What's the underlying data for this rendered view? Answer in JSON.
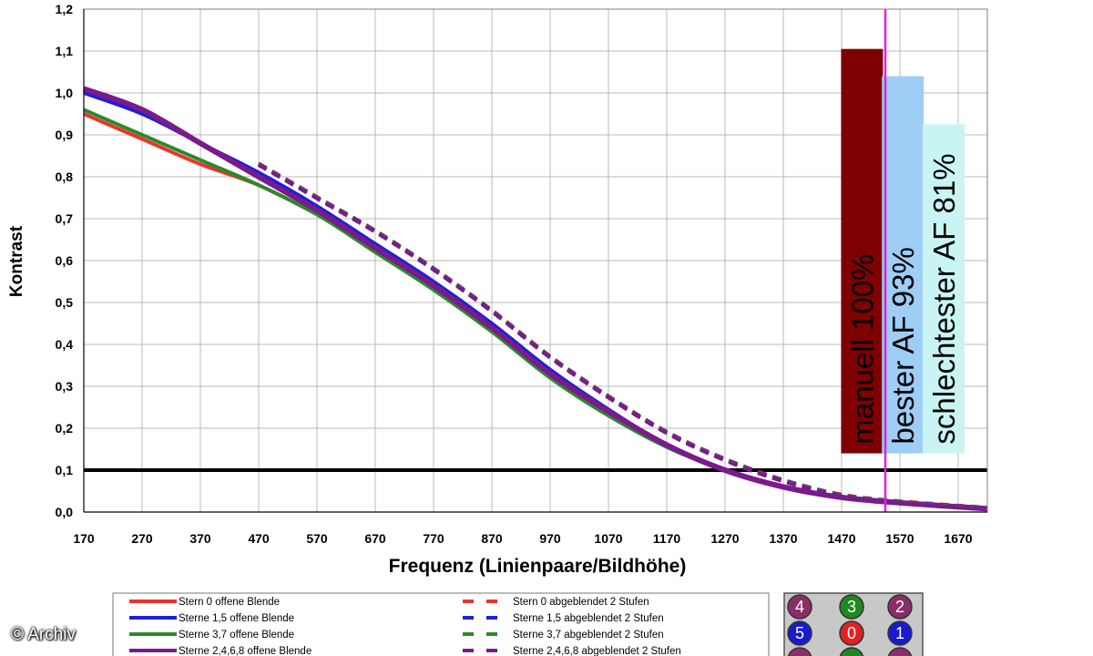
{
  "chart_data": {
    "type": "line",
    "title": "",
    "xlabel": "Frequenz (Linienpaare/Bildhöhe)",
    "ylabel": "Kontrast",
    "xlim": [
      170,
      1720
    ],
    "ylim": [
      0,
      1.2
    ],
    "xticks": [
      "170",
      "270",
      "370",
      "470",
      "570",
      "670",
      "770",
      "870",
      "970",
      "1070",
      "1170",
      "1270",
      "1370",
      "1470",
      "1570",
      "1670"
    ],
    "yticks": [
      "0,0",
      "0,1",
      "0,2",
      "0,3",
      "0,4",
      "0,5",
      "0,6",
      "0,7",
      "0,8",
      "0,9",
      "1,0",
      "1,1",
      "1,2"
    ],
    "grid": true,
    "threshold_line": {
      "y": 0.1,
      "color": "#000000"
    },
    "vertical_marker": {
      "x": 1545,
      "color": "#e020e0"
    },
    "colors": {
      "red": "#e8352b",
      "blue": "#1f1fd6",
      "green": "#2a8a2a",
      "purple": "#7a1a8c"
    },
    "series": [
      {
        "name": "Stern 0 offene Blende",
        "color": "#e8352b",
        "dashed": false,
        "x": [
          170,
          270,
          370,
          470,
          570,
          670,
          770,
          870,
          970,
          1070,
          1170,
          1270,
          1370,
          1470,
          1570,
          1720
        ],
        "y": [
          0.95,
          0.89,
          0.83,
          0.78,
          0.71,
          0.63,
          0.54,
          0.44,
          0.33,
          0.24,
          0.16,
          0.1,
          0.06,
          0.035,
          0.022,
          0.008
        ]
      },
      {
        "name": "Sterne 1,5 offene Blende",
        "color": "#1f1fd6",
        "dashed": false,
        "x": [
          170,
          270,
          370,
          470,
          570,
          670,
          770,
          870,
          970,
          1070,
          1170,
          1270,
          1370,
          1470,
          1570,
          1720
        ],
        "y": [
          1.0,
          0.95,
          0.88,
          0.81,
          0.73,
          0.64,
          0.55,
          0.45,
          0.34,
          0.245,
          0.16,
          0.1,
          0.06,
          0.035,
          0.022,
          0.008
        ]
      },
      {
        "name": "Sterne 3,7 offene Blende",
        "color": "#2a8a2a",
        "dashed": false,
        "x": [
          170,
          270,
          370,
          470,
          570,
          670,
          770,
          870,
          970,
          1070,
          1170,
          1270,
          1370,
          1470,
          1570,
          1720
        ],
        "y": [
          0.96,
          0.9,
          0.84,
          0.78,
          0.71,
          0.62,
          0.53,
          0.43,
          0.32,
          0.23,
          0.155,
          0.1,
          0.06,
          0.035,
          0.022,
          0.008
        ]
      },
      {
        "name": "Sterne 2,4,6,8 offene Blende",
        "color": "#7a1a8c",
        "dashed": false,
        "x": [
          170,
          270,
          370,
          470,
          570,
          670,
          770,
          870,
          970,
          1070,
          1170,
          1270,
          1370,
          1470,
          1570,
          1720
        ],
        "y": [
          1.01,
          0.96,
          0.88,
          0.8,
          0.72,
          0.63,
          0.54,
          0.44,
          0.33,
          0.24,
          0.16,
          0.1,
          0.06,
          0.035,
          0.022,
          0.008
        ]
      },
      {
        "name": "Stern 0 abgeblendet 2 Stufen",
        "color": "#e8352b",
        "dashed": true,
        "x": [
          470,
          570,
          670,
          770,
          870,
          970,
          1070,
          1170,
          1270,
          1370,
          1470,
          1570,
          1720
        ],
        "y": [
          0.83,
          0.75,
          0.67,
          0.58,
          0.48,
          0.37,
          0.275,
          0.19,
          0.125,
          0.075,
          0.04,
          0.024,
          0.009
        ]
      },
      {
        "name": "Sterne 1,5 abgeblendet 2 Stufen",
        "color": "#1f1fd6",
        "dashed": true,
        "x": [
          470,
          570,
          670,
          770,
          870,
          970,
          1070,
          1170,
          1270,
          1370,
          1470,
          1570,
          1720
        ],
        "y": [
          0.83,
          0.75,
          0.67,
          0.58,
          0.48,
          0.37,
          0.275,
          0.19,
          0.125,
          0.075,
          0.04,
          0.024,
          0.009
        ]
      },
      {
        "name": "Sterne 3,7 abgeblendet 2 Stufen",
        "color": "#2a8a2a",
        "dashed": true,
        "x": [
          470,
          570,
          670,
          770,
          870,
          970,
          1070,
          1170,
          1270,
          1370,
          1470,
          1570,
          1720
        ],
        "y": [
          0.83,
          0.75,
          0.67,
          0.58,
          0.48,
          0.37,
          0.275,
          0.19,
          0.125,
          0.075,
          0.04,
          0.024,
          0.009
        ]
      },
      {
        "name": "Sterne 2,4,6,8 abgeblendet 2 Stufen",
        "color": "#7a1a8c",
        "dashed": true,
        "x": [
          470,
          570,
          670,
          770,
          870,
          970,
          1070,
          1170,
          1270,
          1370,
          1470,
          1570,
          1720
        ],
        "y": [
          0.83,
          0.75,
          0.67,
          0.58,
          0.48,
          0.37,
          0.275,
          0.19,
          0.125,
          0.075,
          0.04,
          0.024,
          0.009
        ]
      }
    ],
    "bars": [
      {
        "label": "manuell 100%",
        "x_center": 1505,
        "top": 1.105,
        "bottom": 0.14,
        "color": "#7e0000"
      },
      {
        "label": "bester AF 93%",
        "x_center": 1575,
        "top": 1.04,
        "bottom": 0.14,
        "color": "#9ecdf5"
      },
      {
        "label": "schlechtester AF 81%",
        "x_center": 1645,
        "top": 0.925,
        "bottom": 0.14,
        "color": "#c9f4f4"
      }
    ],
    "badges": [
      {
        "label": "4",
        "color": "#8b2e68"
      },
      {
        "label": "3",
        "color": "#1e8a1e"
      },
      {
        "label": "2",
        "color": "#8b2e68"
      },
      {
        "label": "5",
        "color": "#1a1ad0"
      },
      {
        "label": "0",
        "color": "#e02222"
      },
      {
        "label": "1",
        "color": "#1a1ad0"
      }
    ]
  },
  "watermark": "© Archiv"
}
